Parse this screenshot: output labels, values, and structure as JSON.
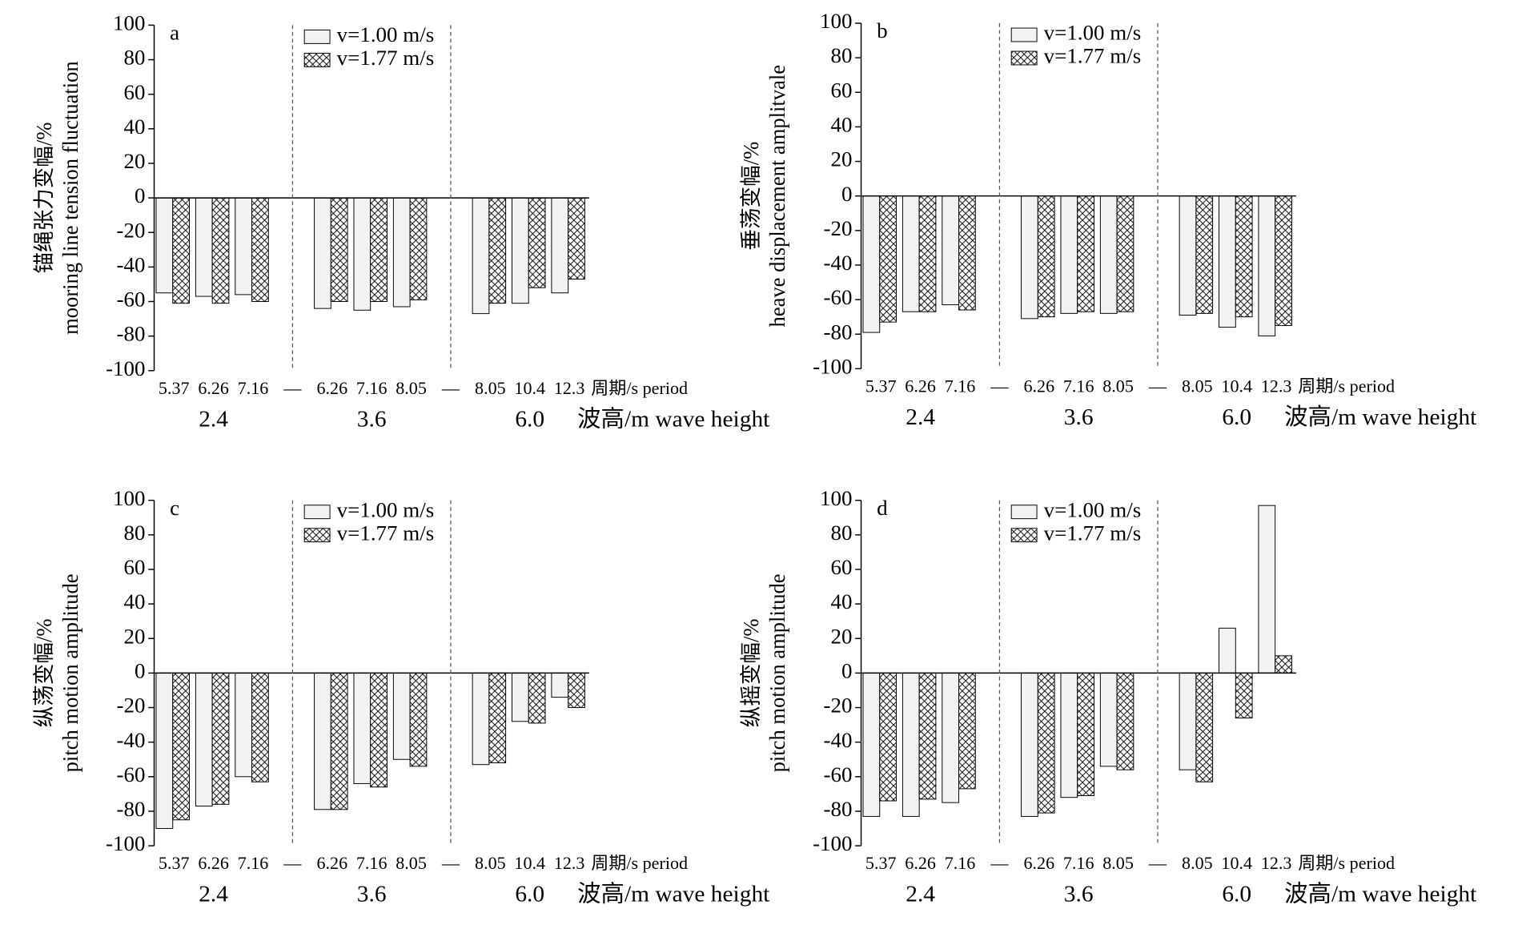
{
  "chart_data": [
    {
      "type": "bar",
      "panel": "a",
      "ylabel": [
        "锚绳张力变幅/%",
        "mooring line tension fluctuation"
      ],
      "categories": [
        "5.37",
        "6.26",
        "7.16",
        "—",
        "6.26",
        "7.16",
        "8.05",
        "—",
        "8.05",
        "10.4",
        "12.3"
      ],
      "xlabel": "周期/s period",
      "groups": [
        "2.4",
        "3.6",
        "6.0"
      ],
      "group_label": "波高/m wave height",
      "series": [
        {
          "name": "v=1.00 m/s",
          "color": "#f2f2f2",
          "hatch": false,
          "values": [
            -55,
            -57,
            -56,
            null,
            -64,
            -65,
            -63,
            null,
            -67,
            -61,
            -55
          ]
        },
        {
          "name": "v=1.77 m/s",
          "color": "#ffffff",
          "hatch": true,
          "values": [
            -61,
            -61,
            -60,
            null,
            -60,
            -60,
            -59,
            null,
            -61,
            -52,
            -47
          ]
        }
      ],
      "ylim": [
        -100,
        100
      ],
      "yticks": [
        -100,
        -80,
        -60,
        -40,
        -20,
        0,
        20,
        40,
        60,
        80,
        100
      ]
    },
    {
      "type": "bar",
      "panel": "b",
      "ylabel": [
        "垂荡变幅/%",
        "heave displacement amplitvale"
      ],
      "categories": [
        "5.37",
        "6.26",
        "7.16",
        "—",
        "6.26",
        "7.16",
        "8.05",
        "—",
        "8.05",
        "10.4",
        "12.3"
      ],
      "xlabel": "周期/s period",
      "groups": [
        "2.4",
        "3.6",
        "6.0"
      ],
      "group_label": "波高/m wave height",
      "series": [
        {
          "name": "v=1.00 m/s",
          "color": "#f2f2f2",
          "hatch": false,
          "values": [
            -79,
            -67,
            -63,
            null,
            -71,
            -68,
            -68,
            null,
            -69,
            -76,
            -81
          ]
        },
        {
          "name": "v=1.77 m/s",
          "color": "#ffffff",
          "hatch": true,
          "values": [
            -73,
            -67,
            -66,
            null,
            -70,
            -67,
            -67,
            null,
            -68,
            -70,
            -75
          ]
        }
      ],
      "ylim": [
        -100,
        100
      ],
      "yticks": [
        -100,
        -80,
        -60,
        -40,
        -20,
        0,
        20,
        40,
        60,
        80,
        100
      ]
    },
    {
      "type": "bar",
      "panel": "c",
      "ylabel": [
        "纵荡变幅/%",
        "pitch motion amplitude"
      ],
      "categories": [
        "5.37",
        "6.26",
        "7.16",
        "—",
        "6.26",
        "7.16",
        "8.05",
        "—",
        "8.05",
        "10.4",
        "12.3"
      ],
      "xlabel": "周期/s period",
      "groups": [
        "2.4",
        "3.6",
        "6.0"
      ],
      "group_label": "波高/m wave height",
      "series": [
        {
          "name": "v=1.00 m/s",
          "color": "#f2f2f2",
          "hatch": false,
          "values": [
            -90,
            -77,
            -60,
            null,
            -79,
            -64,
            -50,
            null,
            -53,
            -28,
            -14
          ]
        },
        {
          "name": "v=1.77 m/s",
          "color": "#ffffff",
          "hatch": true,
          "values": [
            -85,
            -76,
            -63,
            null,
            -79,
            -66,
            -54,
            null,
            -52,
            -29,
            -20
          ]
        }
      ],
      "ylim": [
        -100,
        100
      ],
      "yticks": [
        -100,
        -80,
        -60,
        -40,
        -20,
        0,
        20,
        40,
        60,
        80,
        100
      ]
    },
    {
      "type": "bar",
      "panel": "d",
      "ylabel": [
        "纵摇变幅/%",
        "pitch motion amplitude"
      ],
      "categories": [
        "5.37",
        "6.26",
        "7.16",
        "—",
        "6.26",
        "7.16",
        "8.05",
        "—",
        "8.05",
        "10.4",
        "12.3"
      ],
      "xlabel": "周期/s period",
      "groups": [
        "2.4",
        "3.6",
        "6.0"
      ],
      "group_label": "波高/m wave height",
      "series": [
        {
          "name": "v=1.00 m/s",
          "color": "#f2f2f2",
          "hatch": false,
          "values": [
            -83,
            -83,
            -75,
            null,
            -83,
            -72,
            -54,
            null,
            -56,
            26,
            97
          ]
        },
        {
          "name": "v=1.77 m/s",
          "color": "#ffffff",
          "hatch": true,
          "values": [
            -74,
            -73,
            -67,
            null,
            -81,
            -71,
            -56,
            null,
            -63,
            -26,
            10
          ]
        }
      ],
      "ylim": [
        -100,
        100
      ],
      "yticks": [
        -100,
        -80,
        -60,
        -40,
        -20,
        0,
        20,
        40,
        60,
        80,
        100
      ]
    }
  ]
}
